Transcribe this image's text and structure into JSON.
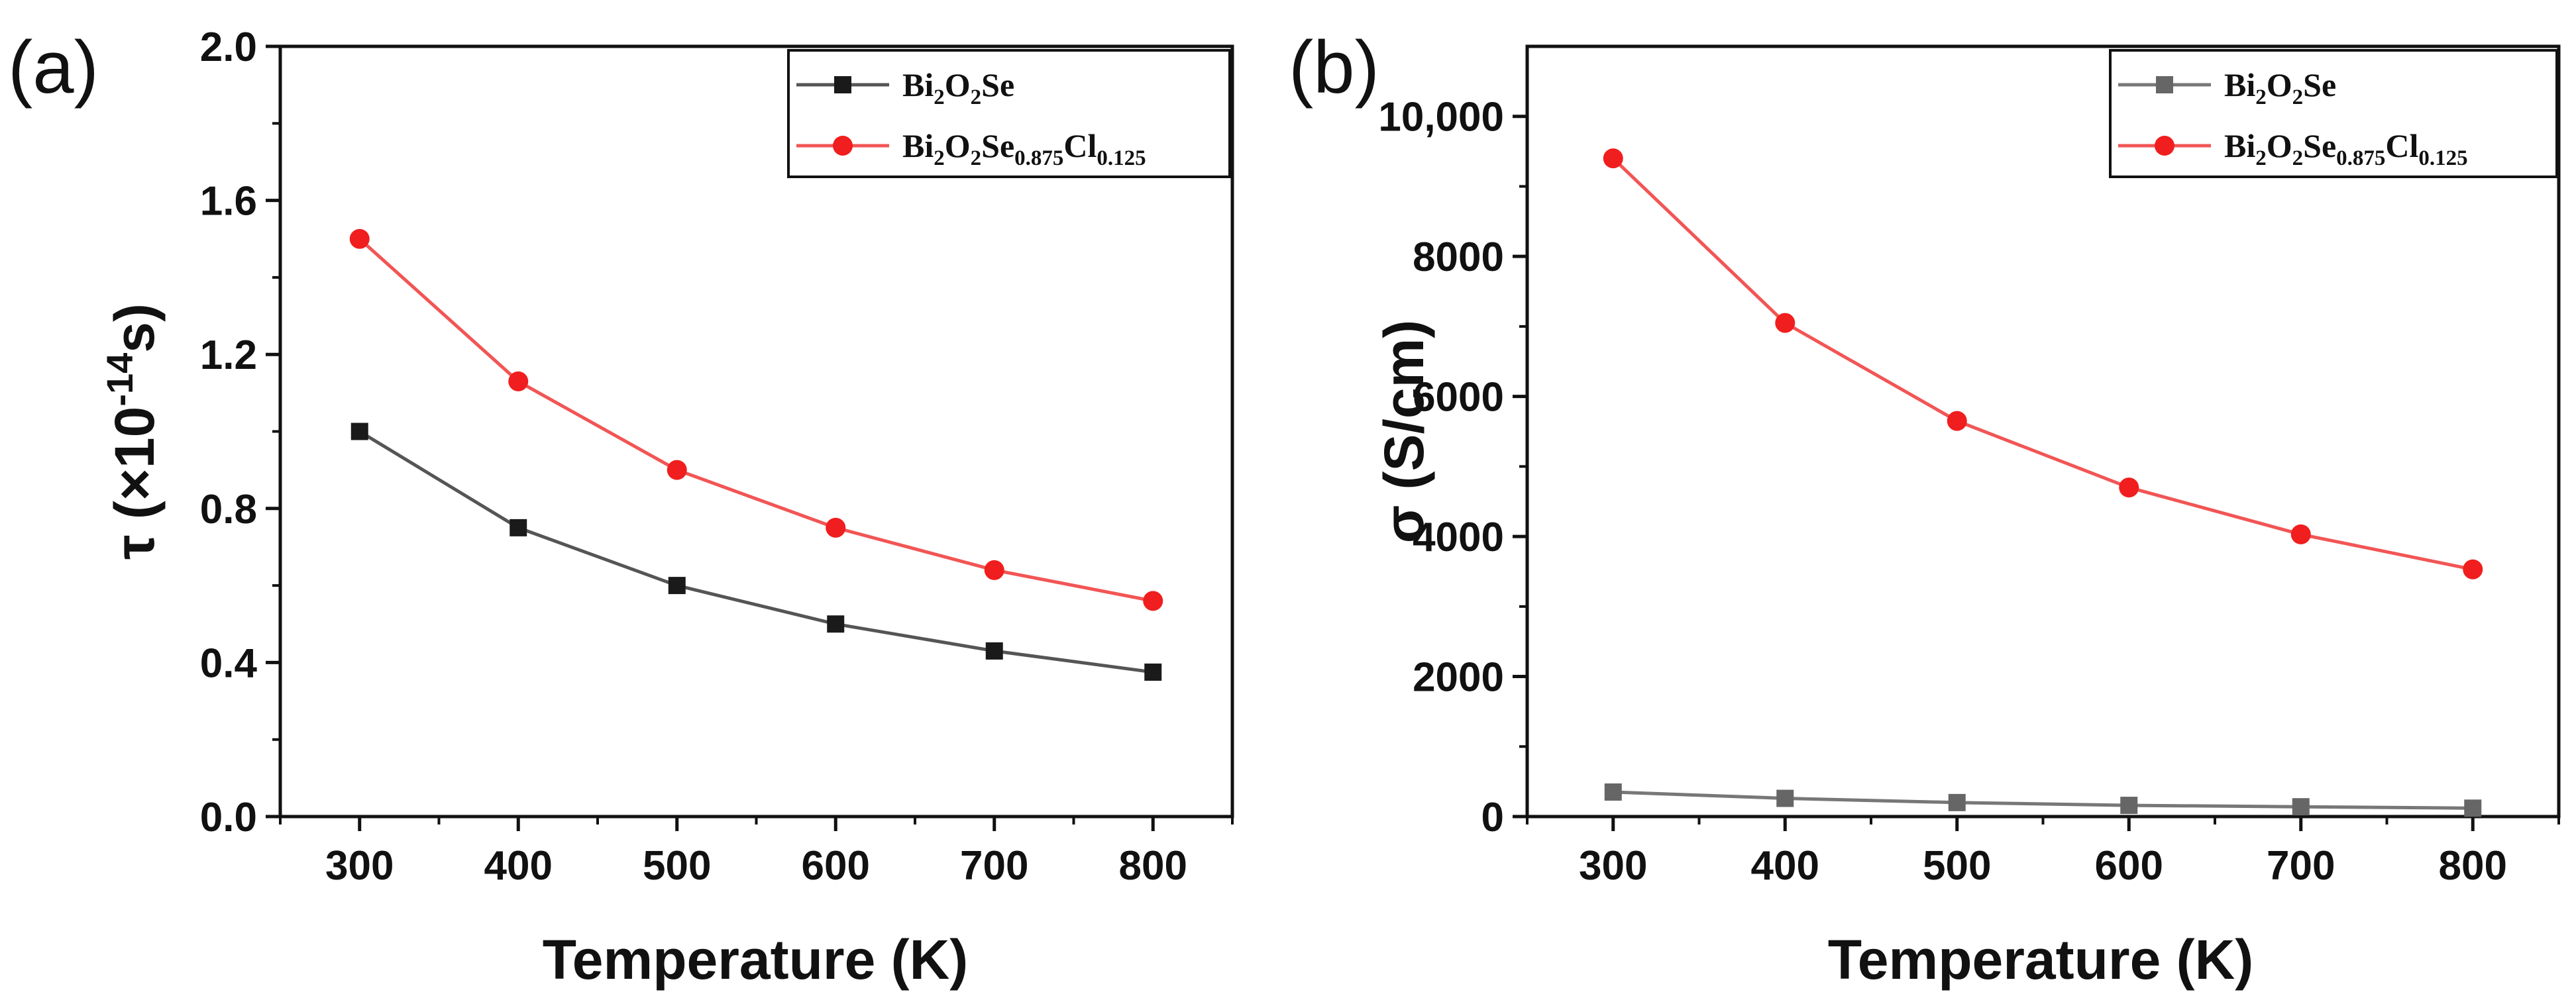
{
  "chart_data": [
    {
      "type": "line",
      "panel_label": "(a)",
      "xlabel": "Temperature (K)",
      "ylabel": {
        "base": "τ (×10",
        "exp": "-14",
        "suffix": "s)"
      },
      "xlim": [
        250,
        850
      ],
      "ylim": [
        0,
        2.0
      ],
      "x_ticks": [
        300,
        400,
        500,
        600,
        700,
        800
      ],
      "x_tick_labels": [
        "300",
        "400",
        "500",
        "600",
        "700",
        "800"
      ],
      "y_ticks": [
        0,
        0.4,
        0.8,
        1.2,
        1.6,
        2.0
      ],
      "y_tick_labels": [
        "0.0",
        "0.4",
        "0.8",
        "1.2",
        "1.6",
        "2.0"
      ],
      "legend_position": "top-right",
      "x": [
        300,
        400,
        500,
        600,
        700,
        800
      ],
      "series": [
        {
          "name": "Bi2O2Se",
          "legend_parts": [
            [
              "Bi",
              false
            ],
            [
              "2",
              true
            ],
            [
              "O",
              false
            ],
            [
              "2",
              true
            ],
            [
              "Se",
              false
            ]
          ],
          "values": [
            1.0,
            0.75,
            0.6,
            0.5,
            0.43,
            0.375
          ],
          "color": "#1a1a1a",
          "line_color": "#555555",
          "marker": "square"
        },
        {
          "name": "Bi2O2Se0.875Cl0.125",
          "legend_parts": [
            [
              "Bi",
              false
            ],
            [
              "2",
              true
            ],
            [
              "O",
              false
            ],
            [
              "2",
              true
            ],
            [
              "Se",
              false
            ],
            [
              "0.875",
              true
            ],
            [
              "Cl",
              false
            ],
            [
              "0.125",
              true
            ]
          ],
          "values": [
            1.5,
            1.13,
            0.9,
            0.75,
            0.64,
            0.56
          ],
          "color": "#f01e1e",
          "line_color": "#f25555",
          "marker": "circle"
        }
      ]
    },
    {
      "type": "line",
      "panel_label": "(b)",
      "xlabel": "Temperature (K)",
      "ylabel": {
        "base": "σ (S/cm)",
        "exp": "",
        "suffix": ""
      },
      "xlim": [
        250,
        850
      ],
      "ylim": [
        0,
        11000
      ],
      "x_ticks": [
        300,
        400,
        500,
        600,
        700,
        800
      ],
      "x_tick_labels": [
        "300",
        "400",
        "500",
        "600",
        "700",
        "800"
      ],
      "y_ticks": [
        0,
        2000,
        4000,
        6000,
        8000,
        10000
      ],
      "y_tick_labels": [
        "0",
        "2000",
        "4000",
        "6000",
        "8000",
        "10,000"
      ],
      "legend_position": "top-right",
      "x": [
        300,
        400,
        500,
        600,
        700,
        800
      ],
      "series": [
        {
          "name": "Bi2O2Se",
          "legend_parts": [
            [
              "Bi",
              false
            ],
            [
              "2",
              true
            ],
            [
              "O",
              false
            ],
            [
              "2",
              true
            ],
            [
              "Se",
              false
            ]
          ],
          "values": [
            350,
            260,
            200,
            160,
            140,
            120
          ],
          "color": "#666666",
          "line_color": "#777777",
          "marker": "square"
        },
        {
          "name": "Bi2O2Se0.875Cl0.125",
          "legend_parts": [
            [
              "Bi",
              false
            ],
            [
              "2",
              true
            ],
            [
              "O",
              false
            ],
            [
              "2",
              true
            ],
            [
              "Se",
              false
            ],
            [
              "0.875",
              true
            ],
            [
              "Cl",
              false
            ],
            [
              "0.125",
              true
            ]
          ],
          "values": [
            9400,
            7050,
            5650,
            4700,
            4030,
            3530
          ],
          "color": "#f01e1e",
          "line_color": "#f25555",
          "marker": "circle"
        }
      ]
    }
  ]
}
